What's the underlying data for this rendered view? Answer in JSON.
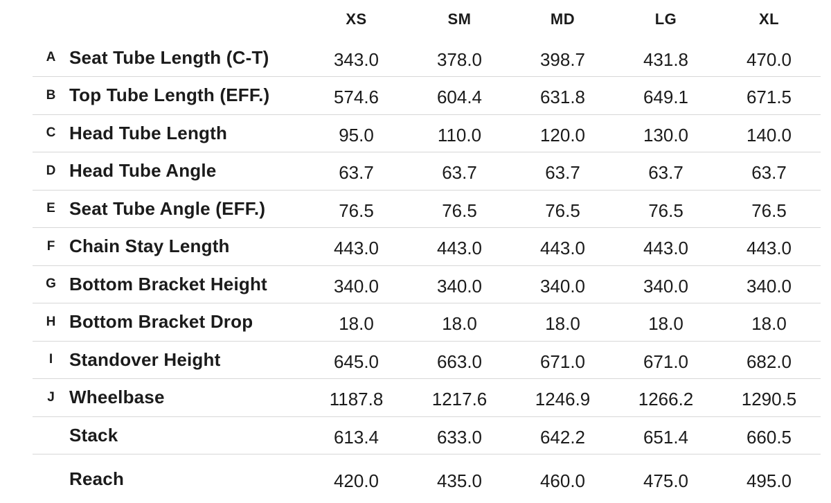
{
  "chart_data": {
    "type": "table",
    "columns": [
      "XS",
      "SM",
      "MD",
      "LG",
      "XL"
    ],
    "rows": [
      {
        "letter": "A",
        "label": "Seat Tube Length (C-T)",
        "values": [
          "343.0",
          "378.0",
          "398.7",
          "431.8",
          "470.0"
        ]
      },
      {
        "letter": "B",
        "label": "Top Tube Length (EFF.)",
        "values": [
          "574.6",
          "604.4",
          "631.8",
          "649.1",
          "671.5"
        ]
      },
      {
        "letter": "C",
        "label": "Head Tube Length",
        "values": [
          "95.0",
          "110.0",
          "120.0",
          "130.0",
          "140.0"
        ]
      },
      {
        "letter": "D",
        "label": "Head Tube Angle",
        "values": [
          "63.7",
          "63.7",
          "63.7",
          "63.7",
          "63.7"
        ]
      },
      {
        "letter": "E",
        "label": "Seat Tube Angle (EFF.)",
        "values": [
          "76.5",
          "76.5",
          "76.5",
          "76.5",
          "76.5"
        ]
      },
      {
        "letter": "F",
        "label": "Chain Stay Length",
        "values": [
          "443.0",
          "443.0",
          "443.0",
          "443.0",
          "443.0"
        ]
      },
      {
        "letter": "G",
        "label": "Bottom Bracket Height",
        "values": [
          "340.0",
          "340.0",
          "340.0",
          "340.0",
          "340.0"
        ]
      },
      {
        "letter": "H",
        "label": "Bottom Bracket Drop",
        "values": [
          "18.0",
          "18.0",
          "18.0",
          "18.0",
          "18.0"
        ]
      },
      {
        "letter": "I",
        "label": "Standover Height",
        "values": [
          "645.0",
          "663.0",
          "671.0",
          "671.0",
          "682.0"
        ]
      },
      {
        "letter": "J",
        "label": "Wheelbase",
        "values": [
          "1187.8",
          "1217.6",
          "1246.9",
          "1266.2",
          "1290.5"
        ]
      },
      {
        "letter": "",
        "label": "Stack",
        "values": [
          "613.4",
          "633.0",
          "642.2",
          "651.4",
          "660.5"
        ]
      },
      {
        "letter": "",
        "label": "Reach",
        "values": [
          "420.0",
          "435.0",
          "460.0",
          "475.0",
          "495.0"
        ]
      }
    ],
    "layout": {
      "grid": "horizontal-dividers-only",
      "value_alignment": "center"
    },
    "colors": {
      "text": "#1b1b1b",
      "divider": "#d7d7d7",
      "background": "#ffffff"
    }
  }
}
